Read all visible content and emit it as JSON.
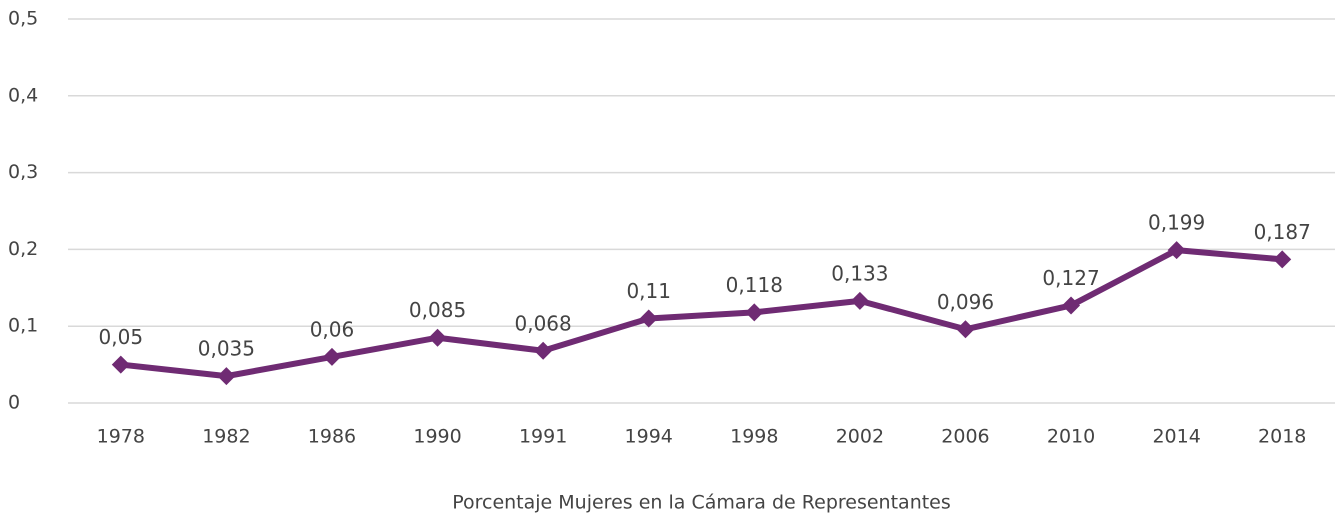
{
  "chart_data": {
    "type": "line",
    "categories": [
      "1978",
      "1982",
      "1986",
      "1990",
      "1991",
      "1994",
      "1998",
      "2002",
      "2006",
      "2010",
      "2014",
      "2018"
    ],
    "series": [
      {
        "name": "Porcentaje Mujeres en la Cámara de Representantes",
        "color": "#6f2b73",
        "values": [
          0.05,
          0.035,
          0.06,
          0.085,
          0.068,
          0.11,
          0.118,
          0.133,
          0.096,
          0.127,
          0.199,
          0.187
        ],
        "value_labels": [
          "0,05",
          "0,035",
          "0,06",
          "0,085",
          "0,068",
          "0,11",
          "0,118",
          "0,133",
          "0,096",
          "0,127",
          "0,199",
          "0,187"
        ]
      }
    ],
    "ylim": [
      0,
      0.5
    ],
    "yticks": [
      0,
      {
        "value": 0.1,
        "label": "0,1"
      },
      {
        "value": 0.2,
        "label": "0,2"
      },
      {
        "value": 0.3,
        "label": "0,3"
      },
      {
        "value": 0.4,
        "label": "0,4"
      },
      {
        "value": 0.5,
        "label": "0,5"
      }
    ],
    "grid": true,
    "legend": "bottom"
  }
}
